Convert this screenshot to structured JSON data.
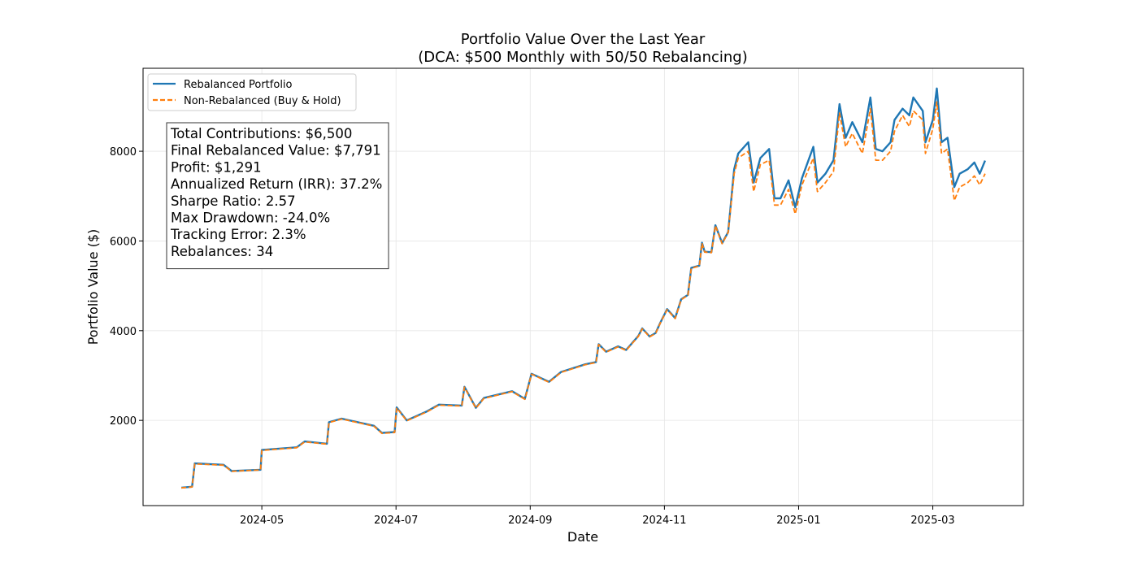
{
  "chart_data": {
    "type": "line",
    "title": "Portfolio Value Over the Last Year",
    "subtitle": "(DCA: $500 Monthly with 50/50 Rebalancing)",
    "x_label": "Date",
    "y_label": "Portfolio Value ($)",
    "x": [
      2.8,
      2.96,
      3.0,
      3.43,
      3.55,
      3.98,
      4.0,
      4.52,
      4.64,
      4.97,
      5.0,
      5.19,
      5.67,
      5.79,
      5.98,
      6.01,
      6.16,
      6.46,
      6.64,
      6.98,
      7.02,
      7.19,
      7.31,
      7.73,
      7.92,
      8.02,
      8.28,
      8.46,
      8.82,
      8.98,
      9.02,
      9.13,
      9.31,
      9.43,
      9.61,
      9.67,
      9.78,
      9.87,
      9.94,
      10.04,
      10.16,
      10.25,
      10.35,
      10.4,
      10.52,
      10.56,
      10.6,
      10.7,
      10.76,
      10.86,
      10.95,
      11.04,
      11.1,
      11.25,
      11.33,
      11.43,
      11.56,
      11.64,
      11.73,
      11.85,
      11.95,
      12.05,
      12.22,
      12.28,
      12.4,
      12.52,
      12.61,
      12.7,
      12.8,
      12.95,
      13.07,
      13.15,
      13.25,
      13.37,
      13.43,
      13.55,
      13.65,
      13.71,
      13.85,
      13.89,
      14.0,
      14.06,
      14.13,
      14.22,
      14.32,
      14.4,
      14.52,
      14.62,
      14.7,
      14.78
    ],
    "series": [
      {
        "name": "Rebalanced Portfolio",
        "color": "#1f77b4",
        "linestyle": "solid",
        "values": [
          500,
          520,
          1040,
          1010,
          870,
          900,
          1340,
          1400,
          1530,
          1480,
          1960,
          2040,
          1880,
          1720,
          1740,
          2290,
          2000,
          2200,
          2350,
          2330,
          2750,
          2280,
          2500,
          2650,
          2480,
          3040,
          2860,
          3080,
          3250,
          3300,
          3700,
          3530,
          3650,
          3570,
          3880,
          4050,
          3870,
          3950,
          4180,
          4480,
          4280,
          4700,
          4800,
          5400,
          5450,
          5960,
          5760,
          5750,
          6350,
          5950,
          6200,
          7600,
          7950,
          8200,
          7300,
          7850,
          8050,
          6950,
          6950,
          7350,
          6750,
          7400,
          8100,
          7300,
          7500,
          7800,
          9050,
          8300,
          8650,
          8200,
          9200,
          8050,
          8000,
          8200,
          8700,
          8950,
          8800,
          9200,
          8900,
          8200,
          8700,
          9400,
          8200,
          8300,
          7200,
          7500,
          7600,
          7750,
          7500,
          7791
        ]
      },
      {
        "name": "Non-Rebalanced (Buy & Hold)",
        "color": "#ff7f0e",
        "linestyle": "dashed",
        "values": [
          495,
          515,
          1030,
          1000,
          865,
          895,
          1330,
          1390,
          1520,
          1470,
          1950,
          2030,
          1870,
          1710,
          1730,
          2280,
          1990,
          2190,
          2340,
          2320,
          2740,
          2270,
          2490,
          2640,
          2470,
          3030,
          2850,
          3070,
          3240,
          3290,
          3690,
          3520,
          3640,
          3560,
          3870,
          4040,
          3860,
          3940,
          4170,
          4470,
          4270,
          4690,
          4790,
          5390,
          5440,
          5950,
          5750,
          5740,
          6340,
          5940,
          6190,
          7500,
          7850,
          8000,
          7100,
          7700,
          7800,
          6800,
          6800,
          7150,
          6600,
          7250,
          7850,
          7100,
          7300,
          7550,
          8850,
          8100,
          8400,
          7950,
          8950,
          7800,
          7800,
          8000,
          8450,
          8800,
          8550,
          8900,
          8700,
          7950,
          8500,
          9100,
          7950,
          8050,
          6900,
          7200,
          7300,
          7450,
          7250,
          7500
        ]
      }
    ],
    "xlim": [
      2.23,
      15.35
    ],
    "xticks": [
      {
        "value": 4,
        "label": "2024-05"
      },
      {
        "value": 6,
        "label": "2024-07"
      },
      {
        "value": 8,
        "label": "2024-09"
      },
      {
        "value": 10,
        "label": "2024-11"
      },
      {
        "value": 12,
        "label": "2025-01"
      },
      {
        "value": 14,
        "label": "2025-03"
      }
    ],
    "ylim": [
      100,
      9850
    ],
    "yticks": [
      2000,
      4000,
      6000,
      8000
    ],
    "grid": true,
    "legend_loc": "upper left",
    "stats_box": [
      "Total Contributions: $6,500",
      "Final Rebalanced Value: $7,791",
      "Profit: $1,291",
      "Annualized Return (IRR): 37.2%",
      "Sharpe Ratio: 2.57",
      "Max Drawdown: -24.0%",
      "Tracking Error: 2.3%",
      "Rebalances: 34"
    ]
  }
}
